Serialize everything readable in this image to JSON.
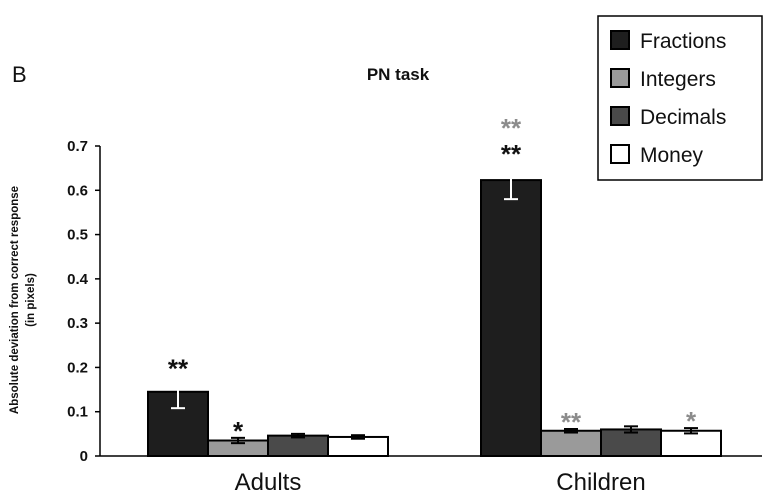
{
  "panel_label": "B",
  "chart_data": {
    "type": "bar",
    "title": "PN task",
    "xlabel": "",
    "ylabel": "Absolute deviation from correct response (in pixels)",
    "ylabel_lines": [
      "Absolute deviation from correct response",
      "(in pixels)"
    ],
    "ylim": [
      0,
      0.7
    ],
    "yticks": [
      "0",
      "0.1",
      "0.2",
      "0.3",
      "0.4",
      "0.5",
      "0.6",
      "0.7"
    ],
    "categories": [
      "Adults",
      "Children"
    ],
    "series": [
      {
        "name": "Fractions",
        "color": "#1e1e1e",
        "values": [
          0.145,
          0.623
        ],
        "errors": [
          0.037,
          0.043
        ],
        "annotations": [
          {
            "text": "**",
            "color": "#111111"
          },
          {
            "text": "**",
            "color": "#111111",
            "extra": {
              "text": "**",
              "color": "#8c8c8c"
            }
          }
        ]
      },
      {
        "name": "Integers",
        "color": "#9a9a9a",
        "values": [
          0.035,
          0.057
        ],
        "errors": [
          0.006,
          0.004
        ],
        "annotations": [
          {
            "text": "*",
            "color": "#111111"
          },
          {
            "text": "**",
            "color": "#8c8c8c"
          }
        ]
      },
      {
        "name": "Decimals",
        "color": "#4a4a4a",
        "values": [
          0.046,
          0.06
        ],
        "errors": [
          0.004,
          0.007
        ],
        "annotations": [
          null,
          null
        ]
      },
      {
        "name": "Money",
        "color": "#ffffff",
        "values": [
          0.043,
          0.057
        ],
        "errors": [
          0.004,
          0.006
        ],
        "annotations": [
          null,
          {
            "text": "*",
            "color": "#8c8c8c"
          }
        ]
      }
    ],
    "legend_position": "top-right",
    "grid": false
  }
}
